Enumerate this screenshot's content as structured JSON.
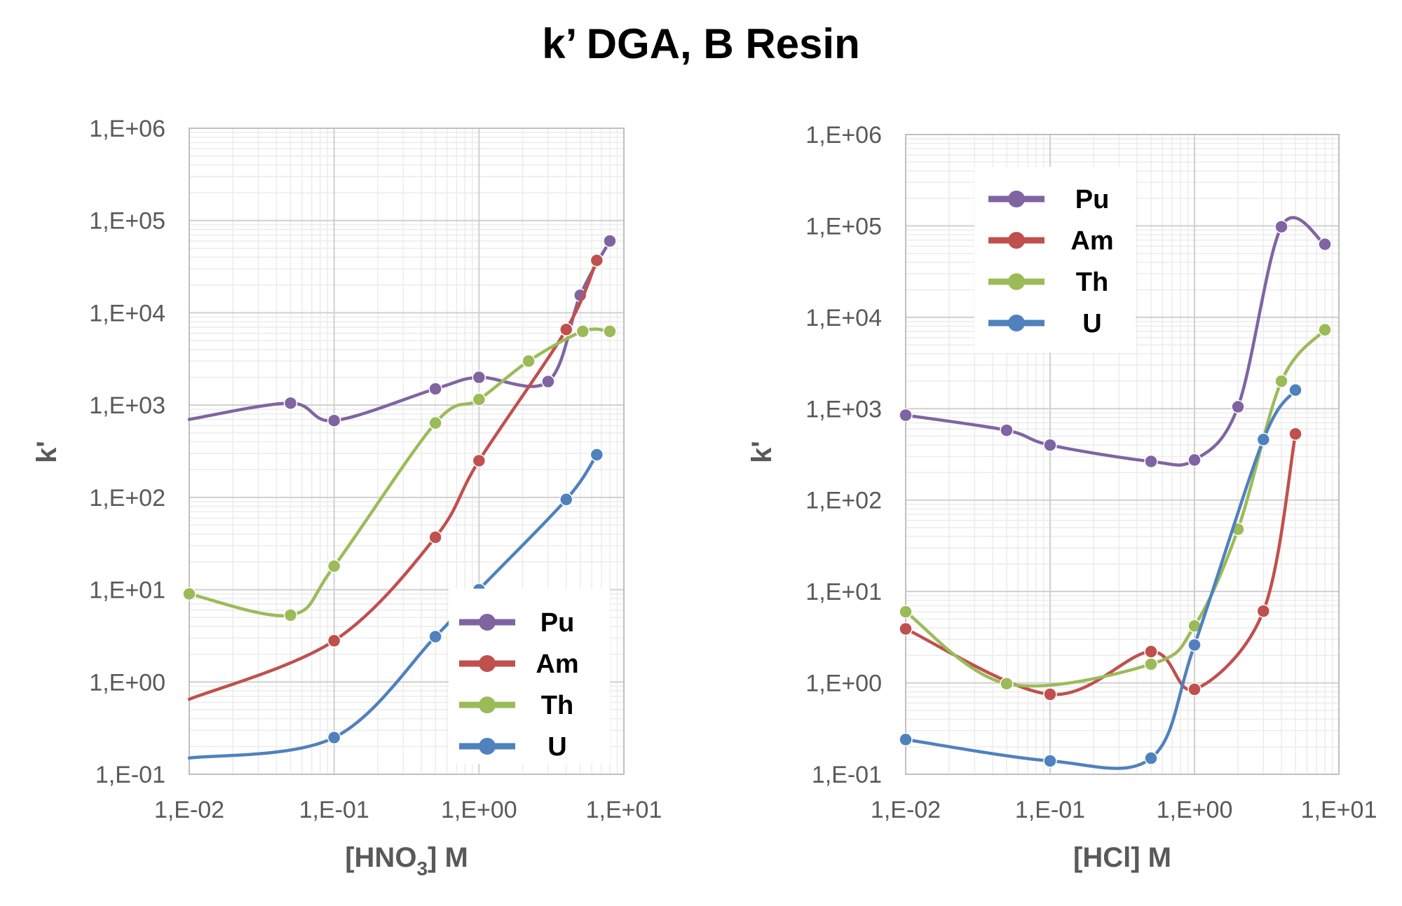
{
  "title": "k’ DGA, B Resin",
  "colors": {
    "Pu": "#8064a2",
    "Am": "#c0504d",
    "Th": "#9bbb59",
    "U": "#4f81bd",
    "grid_major": "#d0d0d0",
    "grid_minor": "#ececec",
    "axis": "#bfbfbf"
  },
  "chart_data": [
    {
      "type": "line",
      "xlabel_main": "[HNO",
      "xlabel_sub": "3",
      "xlabel_tail": "] M",
      "ylabel": "k'",
      "xscale": "log",
      "yscale": "log",
      "xlim": [
        0.01,
        10
      ],
      "ylim": [
        0.1,
        1000000
      ],
      "xticks": [
        "1,E-02",
        "1,E-01",
        "1,E+00",
        "1,E+01"
      ],
      "yticks": [
        "1,E-01",
        "1,E+00",
        "1,E+01",
        "1,E+02",
        "1,E+03",
        "1,E+04",
        "1,E+05",
        "1,E+06"
      ],
      "legend_position": "bottom-right",
      "series": [
        {
          "name": "Pu",
          "points": [
            [
              0.01,
              700
            ],
            [
              0.05,
              1050
            ],
            [
              0.1,
              680
            ],
            [
              0.5,
              1500
            ],
            [
              1.0,
              2000
            ],
            [
              3.0,
              1800
            ],
            [
              5.0,
              15500
            ],
            [
              8.0,
              60000
            ]
          ]
        },
        {
          "name": "Am",
          "points": [
            [
              0.01,
              0.65
            ],
            [
              0.1,
              2.8
            ],
            [
              0.5,
              37
            ],
            [
              1.0,
              250
            ],
            [
              4.0,
              6600
            ],
            [
              6.5,
              37000
            ]
          ]
        },
        {
          "name": "Th",
          "points": [
            [
              0.01,
              9
            ],
            [
              0.05,
              5.3
            ],
            [
              0.1,
              18
            ],
            [
              0.5,
              640
            ],
            [
              1.0,
              1150
            ],
            [
              2.2,
              3000
            ],
            [
              5.2,
              6300
            ],
            [
              8.0,
              6300
            ]
          ]
        },
        {
          "name": "U",
          "points": [
            [
              0.01,
              0.15
            ],
            [
              0.1,
              0.25
            ],
            [
              0.5,
              3.1
            ],
            [
              1.0,
              10
            ],
            [
              4.0,
              95
            ],
            [
              6.5,
              290
            ]
          ]
        }
      ]
    },
    {
      "type": "line",
      "xlabel_main": "[HCl] M",
      "xlabel_sub": "",
      "xlabel_tail": "",
      "ylabel": "k'",
      "xscale": "log",
      "yscale": "log",
      "xlim": [
        0.01,
        10
      ],
      "ylim": [
        0.1,
        1000000
      ],
      "xticks": [
        "1,E-02",
        "1,E-01",
        "1,E+00",
        "1,E+01"
      ],
      "yticks": [
        "1,E-01",
        "1,E+00",
        "1,E+01",
        "1,E+02",
        "1,E+03",
        "1,E+04",
        "1,E+05",
        "1,E+06"
      ],
      "legend_position": "top-left",
      "series": [
        {
          "name": "Pu",
          "points": [
            [
              0.01,
              850
            ],
            [
              0.05,
              580
            ],
            [
              0.1,
              400
            ],
            [
              0.5,
              265
            ],
            [
              1.0,
              275
            ],
            [
              2.0,
              1050
            ],
            [
              4.0,
              98000
            ],
            [
              8.0,
              63000
            ]
          ]
        },
        {
          "name": "Am",
          "points": [
            [
              0.01,
              3.9
            ],
            [
              0.1,
              0.75
            ],
            [
              0.5,
              2.2
            ],
            [
              1.0,
              0.85
            ],
            [
              3.0,
              6.1
            ],
            [
              5.0,
              530
            ]
          ]
        },
        {
          "name": "Th",
          "points": [
            [
              0.01,
              6
            ],
            [
              0.05,
              0.98
            ],
            [
              0.5,
              1.6
            ],
            [
              1.0,
              4.2
            ],
            [
              2.0,
              48
            ],
            [
              4.0,
              2000
            ],
            [
              8.0,
              7300
            ]
          ]
        },
        {
          "name": "U",
          "points": [
            [
              0.01,
              0.24
            ],
            [
              0.1,
              0.14
            ],
            [
              0.5,
              0.15
            ],
            [
              1.0,
              2.6
            ],
            [
              3.0,
              460
            ],
            [
              5.0,
              1600
            ]
          ]
        }
      ]
    }
  ]
}
